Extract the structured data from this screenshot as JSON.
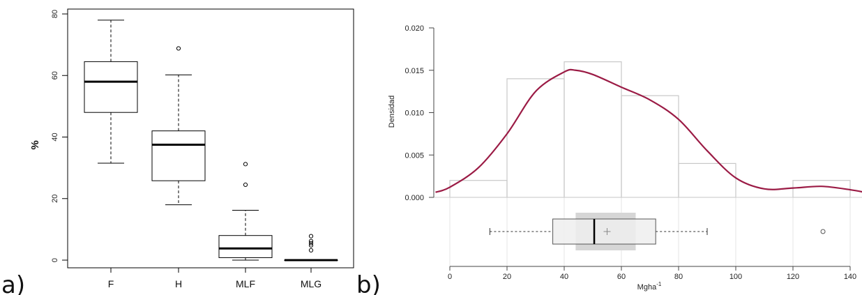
{
  "panels": {
    "a": {
      "letter": "a)"
    },
    "b": {
      "letter": "b)"
    }
  },
  "chart_data": [
    {
      "type": "boxplot",
      "title": "",
      "xlabel": "",
      "ylabel": "%",
      "ylim": [
        0,
        80
      ],
      "yticks": [
        "0",
        "20",
        "40",
        "60",
        "80"
      ],
      "categories": [
        "F",
        "H",
        "MLF",
        "MLG"
      ],
      "boxes": [
        {
          "category": "F",
          "whisker_low": 31.5,
          "q1": 48,
          "median": 58,
          "q3": 64.5,
          "whisker_high": 78,
          "outliers": []
        },
        {
          "category": "H",
          "whisker_low": 18,
          "q1": 25.8,
          "median": 37.5,
          "q3": 42,
          "whisker_high": 60.2,
          "outliers": [
            68.8
          ]
        },
        {
          "category": "MLF",
          "whisker_low": 0,
          "q1": 0.8,
          "median": 3.8,
          "q3": 8,
          "whisker_high": 16.2,
          "outliers": [
            24.5,
            31.2
          ]
        },
        {
          "category": "MLG",
          "whisker_low": 0,
          "q1": 0,
          "median": 0,
          "q3": 0,
          "whisker_high": 0,
          "outliers": [
            3.2,
            4.8,
            5.5,
            6.2,
            7.8
          ]
        }
      ],
      "grid": false
    },
    {
      "type": "histogram-density-boxplot",
      "title": "",
      "xlabel": "Mgha",
      "xlabel_superscript": "-1",
      "ylabel": "Densidad",
      "xlim": [
        0,
        140
      ],
      "ylim": [
        0,
        0.02
      ],
      "xticks": [
        "0",
        "20",
        "40",
        "60",
        "80",
        "100",
        "120",
        "140"
      ],
      "yticks": [
        "0.000",
        "0.005",
        "0.010",
        "0.015",
        "0.020"
      ],
      "histogram": {
        "bin_edges": [
          0,
          20,
          40,
          60,
          80,
          100,
          120,
          140
        ],
        "densities": [
          0.002,
          0.014,
          0.016,
          0.012,
          0.004,
          0,
          0.002
        ]
      },
      "density_curve": {
        "color": "#9b1b45",
        "x": [
          -5,
          0,
          10,
          20,
          30,
          40,
          44,
          50,
          60,
          70,
          80,
          90,
          100,
          110,
          120,
          130,
          140,
          145
        ],
        "y": [
          0.0006,
          0.0012,
          0.0035,
          0.0075,
          0.0125,
          0.0148,
          0.015,
          0.0145,
          0.013,
          0.0115,
          0.0092,
          0.0055,
          0.0023,
          0.001,
          0.0011,
          0.0013,
          0.0009,
          0.0006
        ]
      },
      "boxplot": {
        "whisker_low": 14,
        "q1": 36,
        "median": 50.5,
        "q3": 72,
        "whisker_high": 90,
        "mean": 55,
        "ci_low": 44,
        "ci_high": 65,
        "outliers": [
          130.5
        ]
      },
      "grid": true
    }
  ]
}
